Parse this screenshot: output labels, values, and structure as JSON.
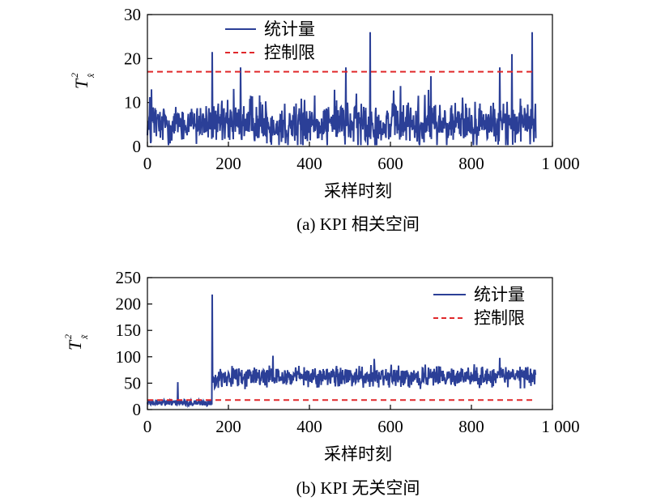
{
  "chart_data": [
    {
      "type": "line",
      "caption": "(a) KPI 相关空间",
      "xlabel": "采样时刻",
      "ylabel": {
        "main": "T",
        "sup": "2",
        "sub": "x̂"
      },
      "xlim": [
        0,
        1000
      ],
      "ylim": [
        0,
        30
      ],
      "xticks": [
        {
          "value": 0,
          "label": "0"
        },
        {
          "value": 200,
          "label": "200"
        },
        {
          "value": 400,
          "label": "400"
        },
        {
          "value": 600,
          "label": "600"
        },
        {
          "value": 800,
          "label": "800"
        },
        {
          "value": 1000,
          "label": "1 000"
        }
      ],
      "yticks": [
        {
          "value": 0,
          "label": "0"
        },
        {
          "value": 10,
          "label": "10"
        },
        {
          "value": 20,
          "label": "20"
        },
        {
          "value": 30,
          "label": "30"
        }
      ],
      "legend_position": "top-center",
      "series": [
        {
          "name": "统计量",
          "color": "#2b3f97",
          "style": "solid",
          "n": 960,
          "baseline_mean": 5.0,
          "spread": 3.5,
          "peaks": [
            [
              10,
              13
            ],
            [
              160,
              21.5
            ],
            [
              230,
              18
            ],
            [
              490,
              18
            ],
            [
              550,
              26
            ],
            [
              700,
              16
            ],
            [
              870,
              18
            ],
            [
              900,
              21
            ],
            [
              950,
              26
            ]
          ]
        },
        {
          "name": "控制限",
          "color": "#e0282b",
          "style": "dashed",
          "x": [
            0,
            960
          ],
          "values": [
            17,
            17
          ]
        }
      ]
    },
    {
      "type": "line",
      "caption": "(b) KPI 无关空间",
      "xlabel": "采样时刻",
      "ylabel": {
        "main": "T",
        "sup": "2",
        "sub": "x̃"
      },
      "xlim": [
        0,
        1000
      ],
      "ylim": [
        0,
        250
      ],
      "xticks": [
        {
          "value": 0,
          "label": "0"
        },
        {
          "value": 200,
          "label": "200"
        },
        {
          "value": 400,
          "label": "400"
        },
        {
          "value": 600,
          "label": "600"
        },
        {
          "value": 800,
          "label": "800"
        },
        {
          "value": 1000,
          "label": "1 000"
        }
      ],
      "yticks": [
        {
          "value": 0,
          "label": "0"
        },
        {
          "value": 50,
          "label": "50"
        },
        {
          "value": 100,
          "label": "100"
        },
        {
          "value": 150,
          "label": "150"
        },
        {
          "value": 200,
          "label": "200"
        },
        {
          "value": 250,
          "label": "250"
        }
      ],
      "legend_position": "top-right",
      "series": [
        {
          "name": "统计量",
          "color": "#2b3f97",
          "style": "solid",
          "n": 960,
          "fault_start": 160,
          "pre_mean": 13,
          "pre_spread": 6,
          "post_mean": 62,
          "post_spread": 12,
          "peaks": [
            [
              75,
              52
            ],
            [
              160,
              218
            ],
            [
              310,
              102
            ],
            [
              560,
              96
            ],
            [
              870,
              98
            ]
          ]
        },
        {
          "name": "控制限",
          "color": "#e0282b",
          "style": "dashed",
          "x": [
            0,
            960
          ],
          "values": [
            18,
            18
          ]
        }
      ]
    }
  ]
}
